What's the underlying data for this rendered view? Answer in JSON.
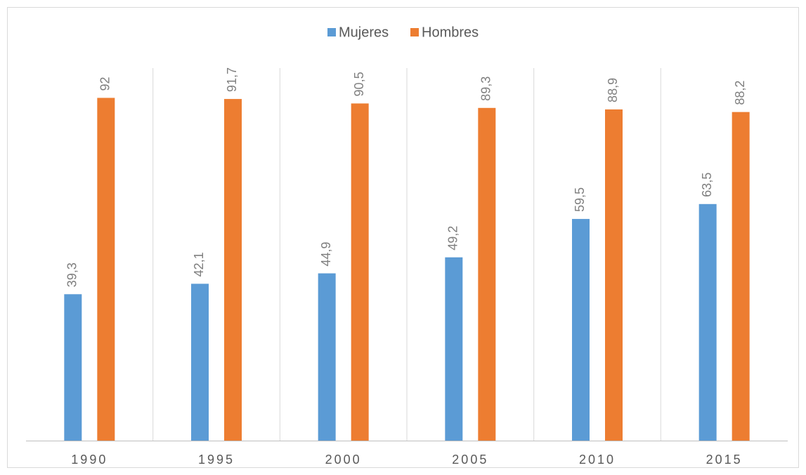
{
  "chart_data": {
    "type": "bar",
    "categories": [
      "1990",
      "1995",
      "2000",
      "2005",
      "2010",
      "2015"
    ],
    "series": [
      {
        "name": "Mujeres",
        "color": "#5b9bd5",
        "values": [
          39.3,
          42.1,
          44.9,
          49.2,
          59.5,
          63.5
        ],
        "value_labels": [
          "39,3",
          "42,1",
          "44,9",
          "49,2",
          "59,5",
          "63,5"
        ]
      },
      {
        "name": "Hombres",
        "color": "#ed7d31",
        "values": [
          92,
          91.7,
          90.5,
          89.3,
          88.9,
          88.2
        ],
        "value_labels": [
          "92",
          "91,7",
          "90,5",
          "89,3",
          "88,9",
          "88,2"
        ]
      }
    ],
    "ylim": [
      0,
      100
    ],
    "legend": "top"
  }
}
